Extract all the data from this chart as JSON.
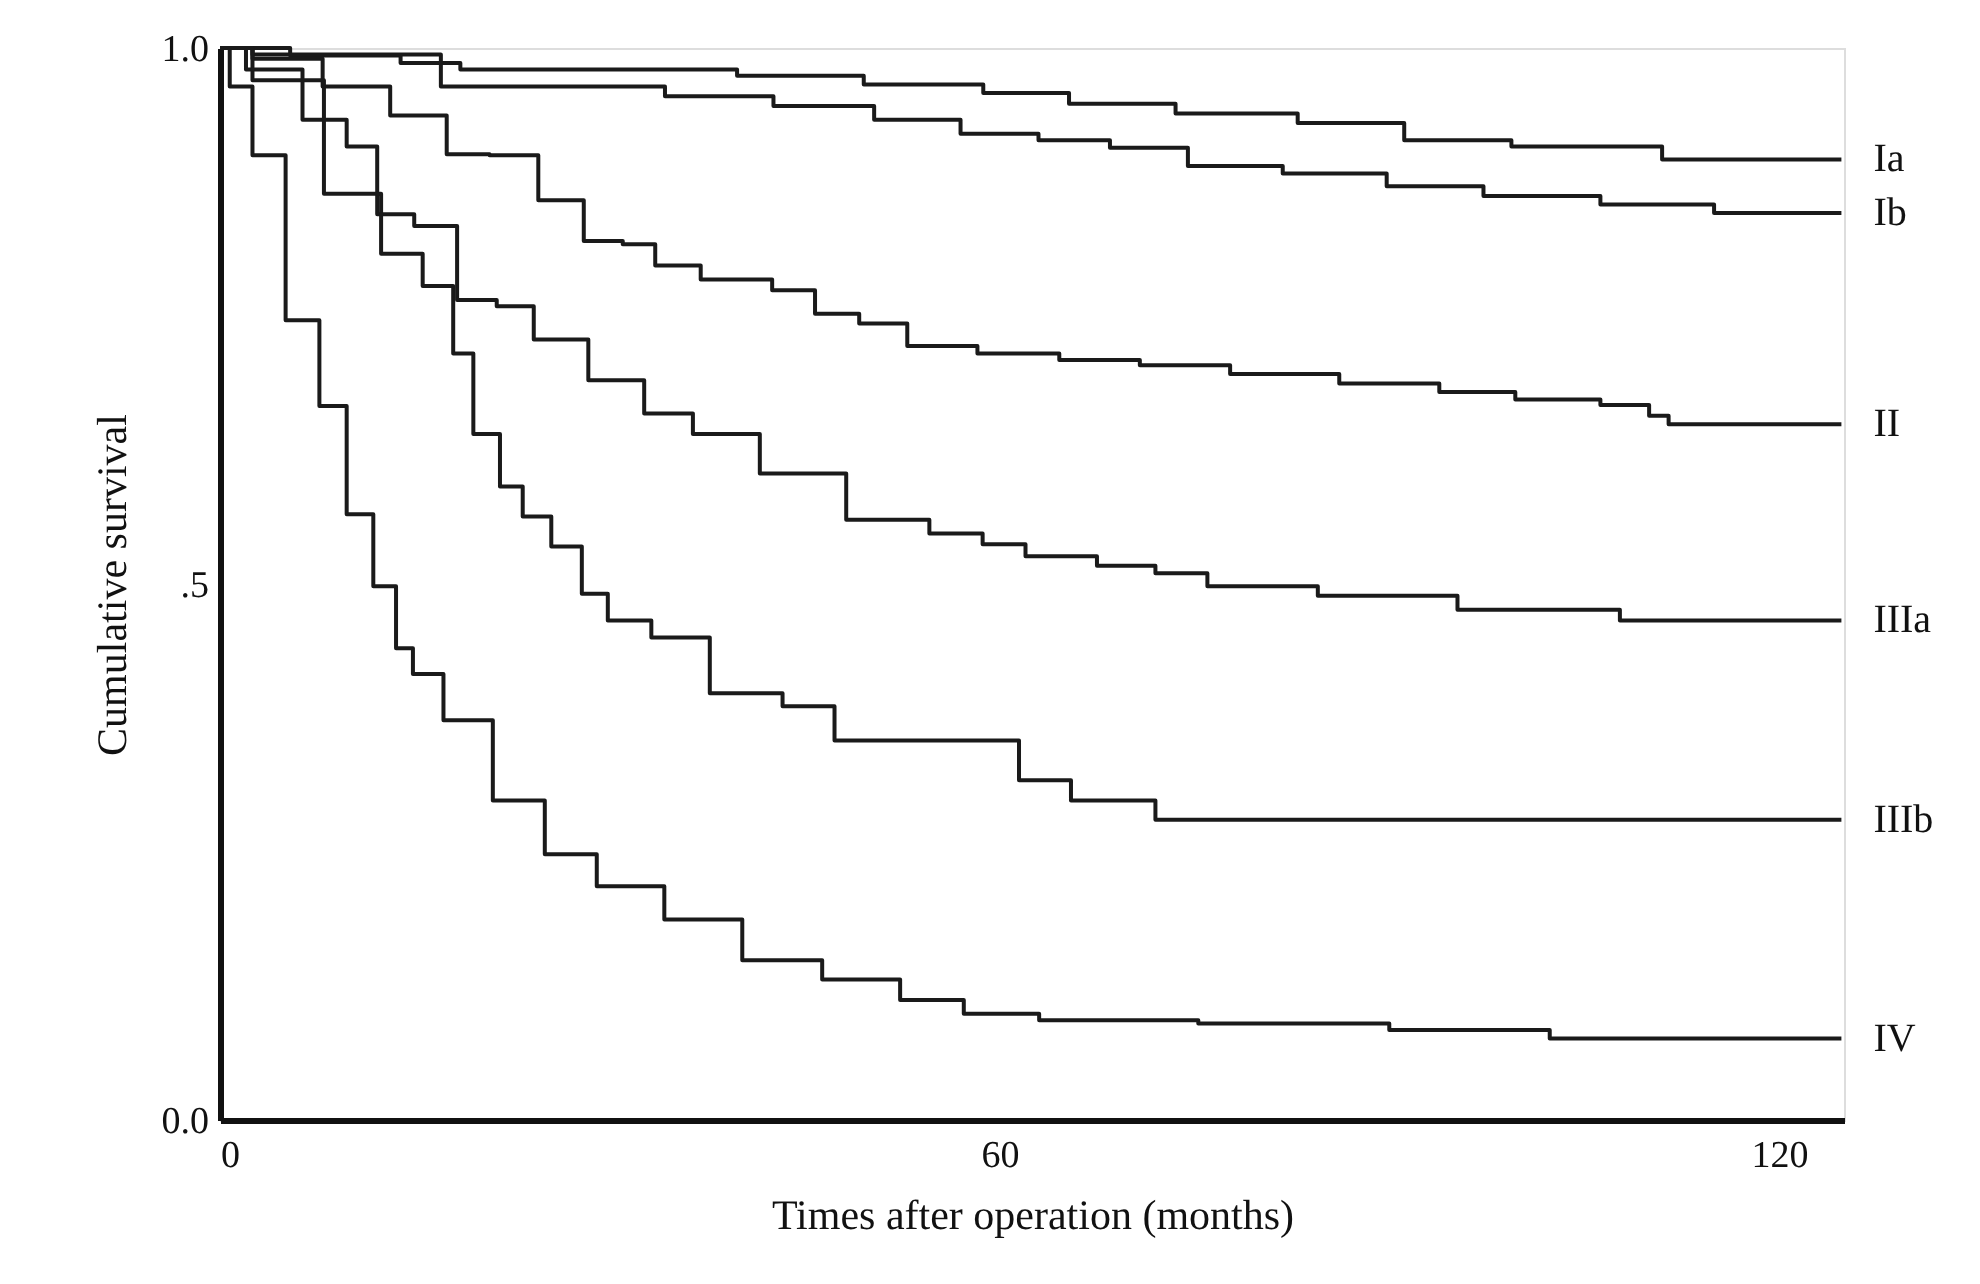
{
  "chart_data": {
    "type": "step",
    "xlabel": "Times after operation (months)",
    "ylabel": "Cumulative survival",
    "xlim": [
      0,
      125
    ],
    "xticks": [
      0,
      60,
      120
    ],
    "ylim": [
      0,
      1
    ],
    "yticks": [
      {
        "value": 0,
        "label": "0.0"
      },
      {
        "value": 0.5,
        "label": ".5"
      },
      {
        "value": 1,
        "label": "1.0"
      }
    ],
    "grid": false,
    "legend": false,
    "marker": "none",
    "line_style": "solid",
    "series": [
      {
        "name": "Ia",
        "color": "#1a1a1a",
        "x": [
          0,
          10.8,
          17,
          20,
          37,
          42.6,
          56.5,
          61,
          69.7,
          77.4,
          88.5,
          93.8,
          105,
          117,
          124.8
        ],
        "values": [
          1.0,
          0.993,
          0.986,
          0.98,
          0.98,
          0.974,
          0.966,
          0.958,
          0.948,
          0.939,
          0.93,
          0.914,
          0.908,
          0.896,
          0.896
        ]
      },
      {
        "name": "Ib",
        "color": "#1a1a1a",
        "x": [
          0,
          5,
          29,
          39.5,
          45.7,
          55,
          59,
          67,
          70,
          79,
          84.6,
          95,
          99.5,
          113,
          117,
          124.8
        ],
        "values": [
          1.0,
          0.994,
          0.964,
          0.955,
          0.946,
          0.933,
          0.92,
          0.914,
          0.907,
          0.89,
          0.883,
          0.871,
          0.862,
          0.854,
          0.846,
          0.846
        ]
      },
      {
        "name": "II",
        "color": "#1a1a1a",
        "x": [
          0,
          5,
          10.8,
          15.4,
          19.5,
          22,
          27,
          29,
          33,
          34,
          40,
          45,
          46.6,
          51.8,
          54,
          62.6,
          66.6,
          75,
          80.5,
          91.8,
          95.9,
          103.5,
          109,
          111,
          112,
          124.8
        ],
        "values": [
          1.0,
          0.99,
          0.964,
          0.937,
          0.901,
          0.9,
          0.858,
          0.82,
          0.817,
          0.797,
          0.784,
          0.774,
          0.752,
          0.743,
          0.722,
          0.715,
          0.709,
          0.704,
          0.696,
          0.687,
          0.679,
          0.672,
          0.667,
          0.657,
          0.649,
          0.649
        ]
      },
      {
        "name": "IIIa",
        "color": "#1a1a1a",
        "x": [
          0,
          4,
          8.7,
          10.8,
          13.4,
          16.5,
          20,
          22.6,
          25.7,
          31,
          34.3,
          38.5,
          44.6,
          51.8,
          57.4,
          60,
          64,
          71,
          73,
          79,
          90,
          100.5,
          115,
          124.8
        ],
        "values": [
          1.0,
          0.98,
          0.933,
          0.908,
          0.845,
          0.834,
          0.765,
          0.759,
          0.728,
          0.69,
          0.659,
          0.64,
          0.603,
          0.56,
          0.547,
          0.537,
          0.526,
          0.517,
          0.51,
          0.498,
          0.489,
          0.476,
          0.466,
          0.466
        ]
      },
      {
        "name": "IIIb",
        "color": "#1a1a1a",
        "x": [
          0,
          5,
          11,
          13.8,
          17.4,
          18.5,
          20.5,
          22.6,
          24,
          27,
          28.7,
          31,
          35.4,
          40,
          46.6,
          48,
          59,
          64,
          67,
          77,
          124.8
        ],
        "values": [
          1.0,
          0.97,
          0.864,
          0.808,
          0.778,
          0.715,
          0.64,
          0.591,
          0.563,
          0.535,
          0.491,
          0.466,
          0.45,
          0.398,
          0.386,
          0.354,
          0.354,
          0.317,
          0.298,
          0.28,
          0.28
        ]
      },
      {
        "name": "IV",
        "color": "#1a1a1a",
        "x": [
          0,
          1.5,
          3.5,
          6.6,
          8.7,
          10.8,
          12.8,
          14.3,
          15.4,
          19,
          23,
          27,
          31,
          37.4,
          43,
          49.7,
          55,
          59.5,
          66.6,
          84,
          96,
          108.7,
          124.8
        ],
        "values": [
          1.0,
          0.964,
          0.9,
          0.746,
          0.666,
          0.565,
          0.498,
          0.44,
          0.416,
          0.373,
          0.298,
          0.248,
          0.218,
          0.187,
          0.149,
          0.131,
          0.112,
          0.099,
          0.093,
          0.09,
          0.084,
          0.076,
          0.076
        ]
      }
    ]
  }
}
